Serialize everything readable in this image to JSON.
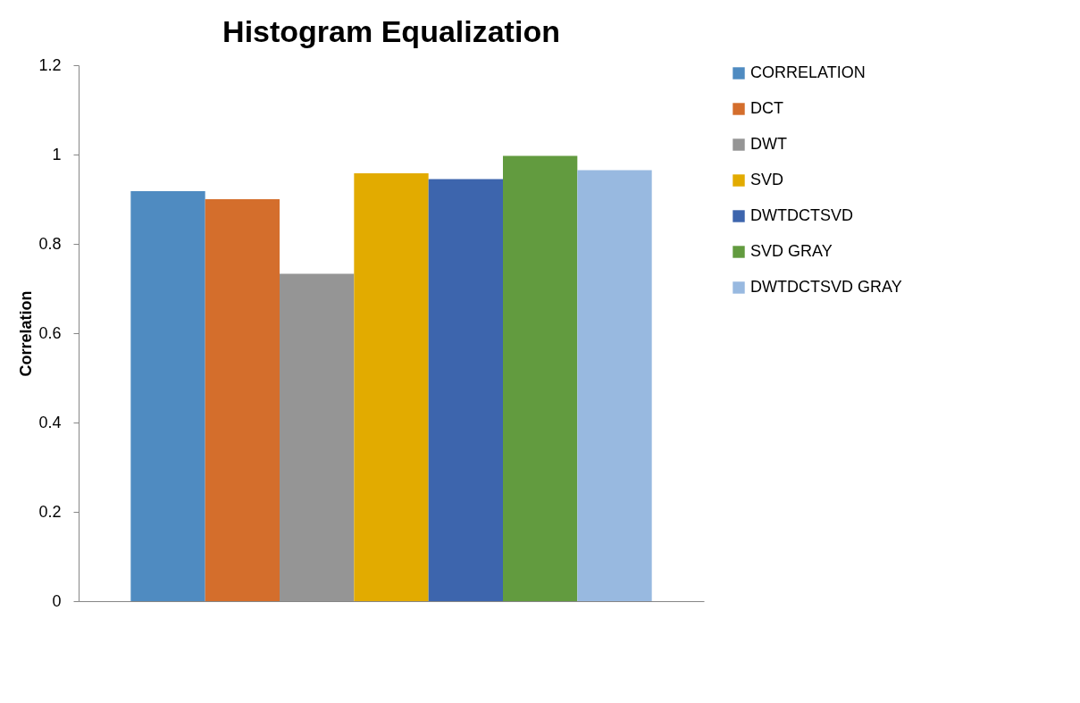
{
  "chart_data": {
    "type": "bar",
    "title": "Histogram Equalization",
    "ylabel": "Correlation",
    "categories": [
      null
    ],
    "series": [
      {
        "name": "CORRELATION",
        "color": "#4f8bc1",
        "values": [
          0.918
        ]
      },
      {
        "name": "DCT",
        "color": "#d46e2c",
        "values": [
          0.9
        ]
      },
      {
        "name": "DWT",
        "color": "#959595",
        "values": [
          0.733
        ]
      },
      {
        "name": "SVD",
        "color": "#e2ab00",
        "values": [
          0.958
        ]
      },
      {
        "name": "DWTDCTSVD",
        "color": "#3d65ad",
        "values": [
          0.945
        ]
      },
      {
        "name": "SVD GRAY",
        "color": "#629b3f",
        "values": [
          0.997
        ]
      },
      {
        "name": "DWTDCTSVD GRAY",
        "color": "#98b9e0",
        "values": [
          0.965
        ]
      }
    ],
    "ylim": [
      0,
      1.2
    ],
    "yticks": [
      0,
      0.2,
      0.4,
      0.6,
      0.8,
      1,
      1.2
    ],
    "grid": false,
    "legend": "right",
    "tick_labels": "y"
  }
}
